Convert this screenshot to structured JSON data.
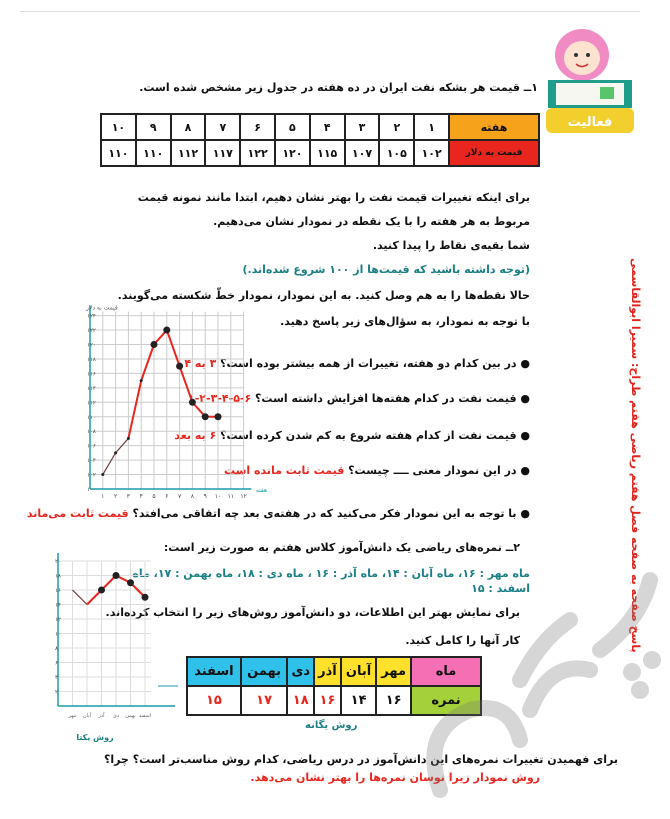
{
  "activity_badge": {
    "label": "فعالیت"
  },
  "side_note": "پاسخ صفحه به صفحه فصل هفتم ریاضی هفتم طراح: سمیرا ابوالقاسمی",
  "watermark": "پرسان",
  "q1": {
    "intro": "۱ــ قیمت هر بشکه نفت ایران در ده هفته در جدول زیر مشخص شده است.",
    "table": {
      "row_labels": [
        "هفته",
        "قیمت به دلار"
      ],
      "weeks": [
        "۱",
        "۲",
        "۳",
        "۴",
        "۵",
        "۶",
        "۷",
        "۸",
        "۹",
        "۱۰"
      ],
      "prices": [
        "۱۰۲",
        "۱۰۵",
        "۱۰۷",
        "۱۱۵",
        "۱۲۰",
        "۱۲۲",
        "۱۱۷",
        "۱۱۲",
        "۱۱۰",
        "۱۱۰"
      ]
    },
    "paragraph": [
      "برای اینکه تغییرات قیمت نفت را بهتر نشان دهیم، ابتدا مانند نمونه قیمت",
      "مربوط به هر هفته را با یک نقطه در نمودار نشان می‌دهیم.",
      "شما بقیه‌ی نقاط را پیدا کنید."
    ],
    "note": "(توجه داشته باشید که قیمت‌ها از ۱۰۰ شروع شده‌اند.)",
    "connect": "حالا نقطه‌ها را به هم وصل کنید. به این نمودار، نمودار خطّ شکسته می‌گویند.",
    "answer_prompt": "با توجه به نمودار، به سؤال‌های زیر پاسخ دهید.",
    "questions": [
      {
        "q": "در بین کدام دو هفته، تغییرات از همه بیشتر بوده است؟",
        "a": "۳ به ۴"
      },
      {
        "q": "قیمت نفت در کدام هفته‌ها افزایش داشته است؟",
        "a": "۶-۵-۴-۳-۲-۱"
      },
      {
        "q": "قیمت نفت از کدام هفته شروع به کم شدن کرده است؟",
        "a": "۶ به بعد"
      },
      {
        "q": "در این نمودار معنی ــــ چیست؟",
        "a": "قیمت ثابت مانده است"
      },
      {
        "q": "با توجه به این نمودار فکر می‌کنید که در هفته‌ی بعد چه اتفاقی می‌افتد؟",
        "a": "قیمت ثابت می‌ماند"
      }
    ]
  },
  "q2": {
    "intro": "۲ــ نمره‌های ریاضی یک دانش‌آموز کلاس هفتم به صورت زیر است:",
    "data_line": "ماه مهر : ۱۶، ماه آبان : ۱۴، ماه آذر : ۱۶ ، ماه دی : ۱۸، ماه بهمن : ۱۷، ماه اسفند : ۱۵",
    "p1": "برای نمایش بهتر این اطلاعات، دو دانش‌آموز روش‌های زیر را انتخاب کرده‌اند.",
    "p2": "کار آنها را کامل کنید.",
    "table": {
      "row_labels": [
        "ماه",
        "نمره"
      ],
      "months": [
        "مهر",
        "آبان",
        "آذر",
        "دی",
        "بهمن",
        "اسفند"
      ],
      "scores": [
        "۱۶",
        "۱۴",
        "۱۶",
        "۱۸",
        "۱۷",
        "۱۵"
      ]
    },
    "table_caption": "روش یگانه",
    "chart_caption": "روش یکتا",
    "final_q": "برای فهمیدن تغییرات نمره‌های این دانش‌آموز در درس ریاضی، کدام روش مناسب‌تر است؟ چرا؟",
    "final_a": "روش نمودار زیرا نوسان نمره‌ها را بهتر نشان می‌دهد."
  },
  "colors": {
    "answer": "#e8261e",
    "teal": "#1a7f86",
    "orange": "#f7a21b",
    "red_cell": "#e8261e",
    "pink": "#f56fb4",
    "green": "#a4d13a",
    "yellow": "#ffe12b",
    "cyan": "#2fc1ea"
  },
  "chart_data": [
    {
      "type": "line",
      "ylabel": "قیمت به دلار",
      "xlabel": "هفته",
      "x": [
        1,
        2,
        3,
        4,
        5,
        6,
        7,
        8,
        9,
        10
      ],
      "y": [
        102,
        105,
        107,
        115,
        120,
        122,
        117,
        112,
        110,
        110
      ],
      "xticks": [
        "۱",
        "۲",
        "۳",
        "۴",
        "۵",
        "۶",
        "۷",
        "۸",
        "۹",
        "۱۰",
        "۱۱",
        "۱۲"
      ],
      "yticks": [
        "۱۰۰",
        "۱۰۲",
        "۱۰۴",
        "۱۰۶",
        "۱۰۸",
        "۱۱۰",
        "۱۱۲",
        "۱۱۴",
        "۱۱۶",
        "۱۱۸",
        "۱۲۰",
        "۱۲۲",
        "۱۲۴"
      ],
      "ylim": [
        100,
        124
      ],
      "xlim": [
        0,
        12
      ],
      "grid": true
    },
    {
      "type": "line",
      "categories": [
        "مهر",
        "آبان",
        "آذر",
        "دی",
        "بهمن",
        "اسفند"
      ],
      "y": [
        16,
        14,
        16,
        18,
        17,
        15
      ],
      "yticks": [
        "۲",
        "۴",
        "۶",
        "۸",
        "۱۰",
        "۱۲",
        "۱۴",
        "۱۶",
        "۱۸",
        "۲۰"
      ],
      "ylim": [
        0,
        20
      ],
      "grid": true
    }
  ]
}
